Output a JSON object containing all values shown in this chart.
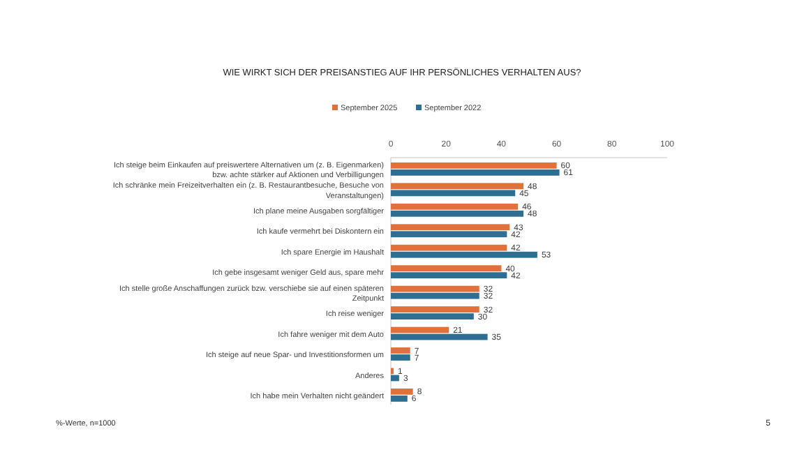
{
  "chart_data": {
    "type": "bar",
    "orientation": "horizontal",
    "title": "WIE WIRKT SICH DER PREISANSTIEG AUF IHR PERSÖNLICHES VERHALTEN AUS?",
    "categories": [
      "Ich steige beim Einkaufen auf preiswertere Alternativen um (z. B. Eigenmarken) bzw. achte stärker auf Aktionen und Verbilligungen",
      "Ich schränke mein Freizeitverhalten ein (z. B. Restaurantbesuche, Besuche von Veranstaltungen)",
      "Ich plane meine Ausgaben sorgfältiger",
      "Ich kaufe vermehrt bei Diskontern ein",
      "Ich spare Energie im Haushalt",
      "Ich gebe insgesamt weniger Geld aus, spare mehr",
      "Ich stelle große Anschaffungen zurück bzw. verschiebe sie auf einen späteren Zeitpunkt",
      "Ich reise weniger",
      "Ich fahre weniger mit dem Auto",
      "Ich steige auf neue Spar- und Investitionsformen um",
      "Anderes",
      "Ich habe mein Verhalten nicht geändert"
    ],
    "series": [
      {
        "name": "September 2025",
        "color": "#e2703a",
        "values": [
          60,
          48,
          46,
          43,
          42,
          40,
          32,
          32,
          21,
          7,
          1,
          8
        ]
      },
      {
        "name": "September 2022",
        "color": "#2e6e93",
        "values": [
          61,
          45,
          48,
          42,
          53,
          42,
          32,
          30,
          35,
          7,
          3,
          6
        ]
      }
    ],
    "xlim": [
      0,
      100
    ],
    "xticks": [
      0,
      20,
      40,
      60,
      80,
      100
    ],
    "data_labels": true,
    "legend": "top",
    "annotations": [
      "%-Werte, n=1000",
      "5"
    ]
  }
}
